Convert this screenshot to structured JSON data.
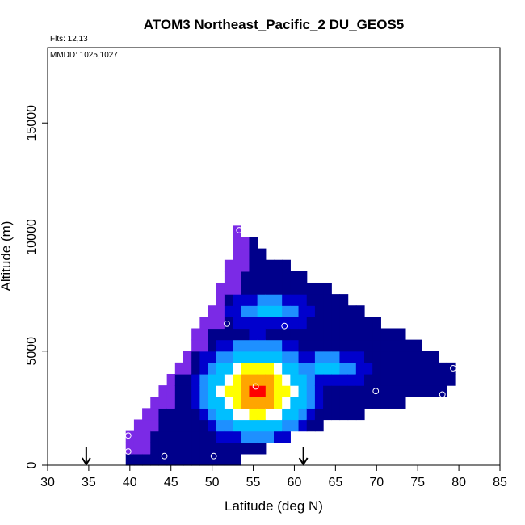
{
  "chart_data": {
    "type": "heatmap",
    "title": "ATOM3 Northeast_Pacific_2 DU_GEOS5",
    "notes": [
      "Flts: 12,13",
      "MMDD: 1025,1027"
    ],
    "xlabel": "Latitude (deg N)",
    "ylabel": "Altitude (m)",
    "xlim": [
      30,
      85
    ],
    "ylim": [
      0,
      18300
    ],
    "x_ticks": [
      30,
      35,
      40,
      45,
      50,
      55,
      60,
      65,
      70,
      75,
      80,
      85
    ],
    "y_ticks": [
      0,
      5000,
      10000,
      15000
    ],
    "grid": false,
    "legend": "none",
    "colormap": [
      "#4b0082",
      "#7b2ae6",
      "#00008b",
      "#0000cd",
      "#1e90ff",
      "#00bfff",
      "#ffffff",
      "#ffff00",
      "#ffa500",
      "#ff0000"
    ],
    "columns": [
      {
        "lat_min": 39.5,
        "lat_max": 40.5,
        "alt_min": 0,
        "alt_max": 1500
      },
      {
        "lat_min": 40.5,
        "lat_max": 41.5,
        "alt_min": 0,
        "alt_max": 2000
      },
      {
        "lat_min": 41.5,
        "lat_max": 42.5,
        "alt_min": 0,
        "alt_max": 2500
      },
      {
        "lat_min": 42.5,
        "lat_max": 43.5,
        "alt_min": 0,
        "alt_max": 3000
      },
      {
        "lat_min": 43.5,
        "lat_max": 44.5,
        "alt_min": 0,
        "alt_max": 3500
      },
      {
        "lat_min": 44.5,
        "lat_max": 45.5,
        "alt_min": 0,
        "alt_max": 4000
      },
      {
        "lat_min": 45.5,
        "lat_max": 46.5,
        "alt_min": 0,
        "alt_max": 4500
      },
      {
        "lat_min": 46.5,
        "lat_max": 47.5,
        "alt_min": 0,
        "alt_max": 5000
      },
      {
        "lat_min": 47.5,
        "lat_max": 48.5,
        "alt_min": 0,
        "alt_max": 6000
      },
      {
        "lat_min": 48.5,
        "lat_max": 49.5,
        "alt_min": 0,
        "alt_max": 6500
      },
      {
        "lat_min": 49.5,
        "lat_max": 50.5,
        "alt_min": 0,
        "alt_max": 7000
      },
      {
        "lat_min": 50.5,
        "lat_max": 51.5,
        "alt_min": 0,
        "alt_max": 8000
      },
      {
        "lat_min": 51.5,
        "lat_max": 52.5,
        "alt_min": 0,
        "alt_max": 9000
      },
      {
        "lat_min": 52.5,
        "lat_max": 53.5,
        "alt_min": 0,
        "alt_max": 10500
      },
      {
        "lat_min": 53.5,
        "lat_max": 54.5,
        "alt_min": 500,
        "alt_max": 10000
      },
      {
        "lat_min": 54.5,
        "lat_max": 55.5,
        "alt_min": 500,
        "alt_max": 10000
      },
      {
        "lat_min": 55.5,
        "lat_max": 56.5,
        "alt_min": 500,
        "alt_max": 9500
      },
      {
        "lat_min": 56.5,
        "lat_max": 57.5,
        "alt_min": 1000,
        "alt_max": 9000
      },
      {
        "lat_min": 57.5,
        "lat_max": 58.5,
        "alt_min": 1000,
        "alt_max": 9000
      },
      {
        "lat_min": 58.5,
        "lat_max": 59.5,
        "alt_min": 1000,
        "alt_max": 9000
      },
      {
        "lat_min": 59.5,
        "lat_max": 60.5,
        "alt_min": 1500,
        "alt_max": 8500
      },
      {
        "lat_min": 60.5,
        "lat_max": 61.5,
        "alt_min": 1500,
        "alt_max": 8500
      },
      {
        "lat_min": 61.5,
        "lat_max": 62.5,
        "alt_min": 1500,
        "alt_max": 8000
      },
      {
        "lat_min": 62.5,
        "lat_max": 63.5,
        "alt_min": 1500,
        "alt_max": 8000
      },
      {
        "lat_min": 63.5,
        "lat_max": 64.5,
        "alt_min": 2000,
        "alt_max": 8000
      },
      {
        "lat_min": 64.5,
        "lat_max": 65.5,
        "alt_min": 2000,
        "alt_max": 7500
      },
      {
        "lat_min": 65.5,
        "lat_max": 66.5,
        "alt_min": 2000,
        "alt_max": 7500
      },
      {
        "lat_min": 66.5,
        "lat_max": 67.5,
        "alt_min": 2000,
        "alt_max": 7000
      },
      {
        "lat_min": 67.5,
        "lat_max": 68.5,
        "alt_min": 2000,
        "alt_max": 7000
      },
      {
        "lat_min": 68.5,
        "lat_max": 69.5,
        "alt_min": 2500,
        "alt_max": 6500
      },
      {
        "lat_min": 69.5,
        "lat_max": 70.5,
        "alt_min": 2500,
        "alt_max": 6500
      },
      {
        "lat_min": 70.5,
        "lat_max": 71.5,
        "alt_min": 2500,
        "alt_max": 6000
      },
      {
        "lat_min": 71.5,
        "lat_max": 72.5,
        "alt_min": 2500,
        "alt_max": 6000
      },
      {
        "lat_min": 72.5,
        "lat_max": 73.5,
        "alt_min": 2500,
        "alt_max": 6000
      },
      {
        "lat_min": 73.5,
        "lat_max": 74.5,
        "alt_min": 3000,
        "alt_max": 5500
      },
      {
        "lat_min": 74.5,
        "lat_max": 75.5,
        "alt_min": 3000,
        "alt_max": 5500
      },
      {
        "lat_min": 75.5,
        "lat_max": 76.5,
        "alt_min": 3000,
        "alt_max": 5000
      },
      {
        "lat_min": 76.5,
        "lat_max": 77.5,
        "alt_min": 3000,
        "alt_max": 5000
      },
      {
        "lat_min": 77.5,
        "lat_max": 78.5,
        "alt_min": 3000,
        "alt_max": 4500
      },
      {
        "lat_min": 78.5,
        "lat_max": 79.5,
        "alt_min": 3500,
        "alt_max": 4500
      }
    ],
    "purple_band": [
      {
        "lat": 53.0,
        "alt_max": 10500
      },
      {
        "lat": 52.2,
        "alt_max": 9200
      },
      {
        "lat": 50.6,
        "alt_max": 8000
      },
      {
        "lat": 48.6,
        "alt_max": 6800
      },
      {
        "lat": 46.6,
        "alt_max": 5600
      },
      {
        "lat": 44.6,
        "alt_max": 4400
      },
      {
        "lat": 42.8,
        "alt_max": 3400
      },
      {
        "lat": 41.0,
        "alt_max": 2300
      }
    ],
    "peak": {
      "lat": 55.5,
      "alt": 3300
    },
    "secondary_maxima": [
      {
        "lat": 57.0,
        "alt": 6800,
        "color_index": 5
      },
      {
        "lat": 64.0,
        "alt": 4300,
        "color_index": 5
      },
      {
        "lat": 70.0,
        "alt": 3300,
        "color_index": 0
      }
    ],
    "sample_points": [
      {
        "lat": 39.8,
        "alt": 600
      },
      {
        "lat": 39.8,
        "alt": 1300
      },
      {
        "lat": 44.2,
        "alt": 400
      },
      {
        "lat": 50.2,
        "alt": 400
      },
      {
        "lat": 51.8,
        "alt": 6200
      },
      {
        "lat": 53.3,
        "alt": 10300
      },
      {
        "lat": 55.3,
        "alt": 3450
      },
      {
        "lat": 58.8,
        "alt": 6100
      },
      {
        "lat": 69.9,
        "alt": 3250
      },
      {
        "lat": 78.0,
        "alt": 3100
      },
      {
        "lat": 79.3,
        "alt": 4250
      }
    ],
    "flight_markers": [
      {
        "lat": 34.7,
        "alt": 0
      },
      {
        "lat": 61.1,
        "alt": 0
      }
    ]
  }
}
